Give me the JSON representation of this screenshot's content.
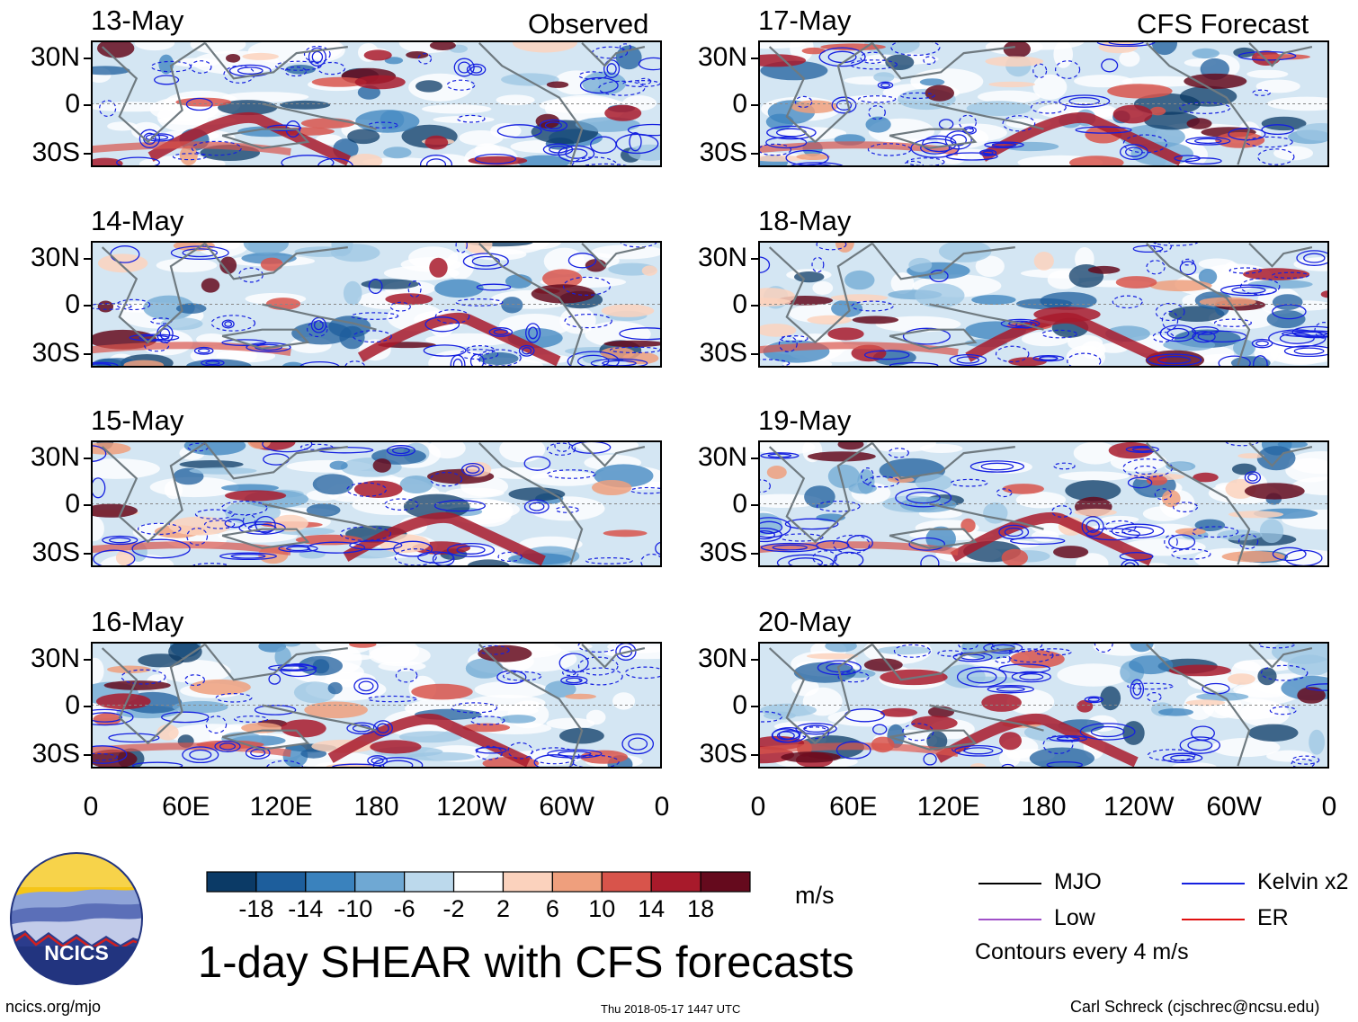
{
  "labels": {
    "observed": "Observed",
    "forecast": "CFS Forecast",
    "main_title": "1-day SHEAR with CFS forecasts",
    "units": "m/s",
    "contour_note": "Contours every 4 m/s",
    "url": "ncics.org/mjo",
    "timestamp": "Thu 2018-05-17 1447 UTC",
    "author": "Carl Schreck (cjschrec@ncsu.edu)",
    "logo_text": "NCICS"
  },
  "panels": [
    {
      "date": "13-May",
      "type": "observed"
    },
    {
      "date": "14-May",
      "type": "observed"
    },
    {
      "date": "15-May",
      "type": "observed"
    },
    {
      "date": "16-May",
      "type": "observed"
    },
    {
      "date": "17-May",
      "type": "forecast"
    },
    {
      "date": "18-May",
      "type": "forecast"
    },
    {
      "date": "19-May",
      "type": "forecast"
    },
    {
      "date": "20-May",
      "type": "forecast"
    }
  ],
  "lat_labels": [
    "30N",
    "0",
    "30S"
  ],
  "lon_labels": [
    "0",
    "60E",
    "120E",
    "180",
    "120W",
    "60W",
    "0"
  ],
  "colorbar": {
    "tick_labels": [
      "-18",
      "-14",
      "-10",
      "-6",
      "-2",
      "2",
      "6",
      "10",
      "14",
      "18"
    ],
    "colors": [
      "#0b3a66",
      "#1d5e9c",
      "#3a82bd",
      "#6fa8d3",
      "#bcd9ec",
      "#ffffff",
      "#fbd2bd",
      "#ef9f7d",
      "#d8544b",
      "#a81a2b",
      "#650a1d"
    ]
  },
  "legend": [
    {
      "label": "MJO",
      "color": "#000000"
    },
    {
      "label": "Kelvin x2",
      "color": "#1520e0"
    },
    {
      "label": "Low",
      "color": "#a050c8"
    },
    {
      "label": "ER",
      "color": "#e01010"
    }
  ]
}
